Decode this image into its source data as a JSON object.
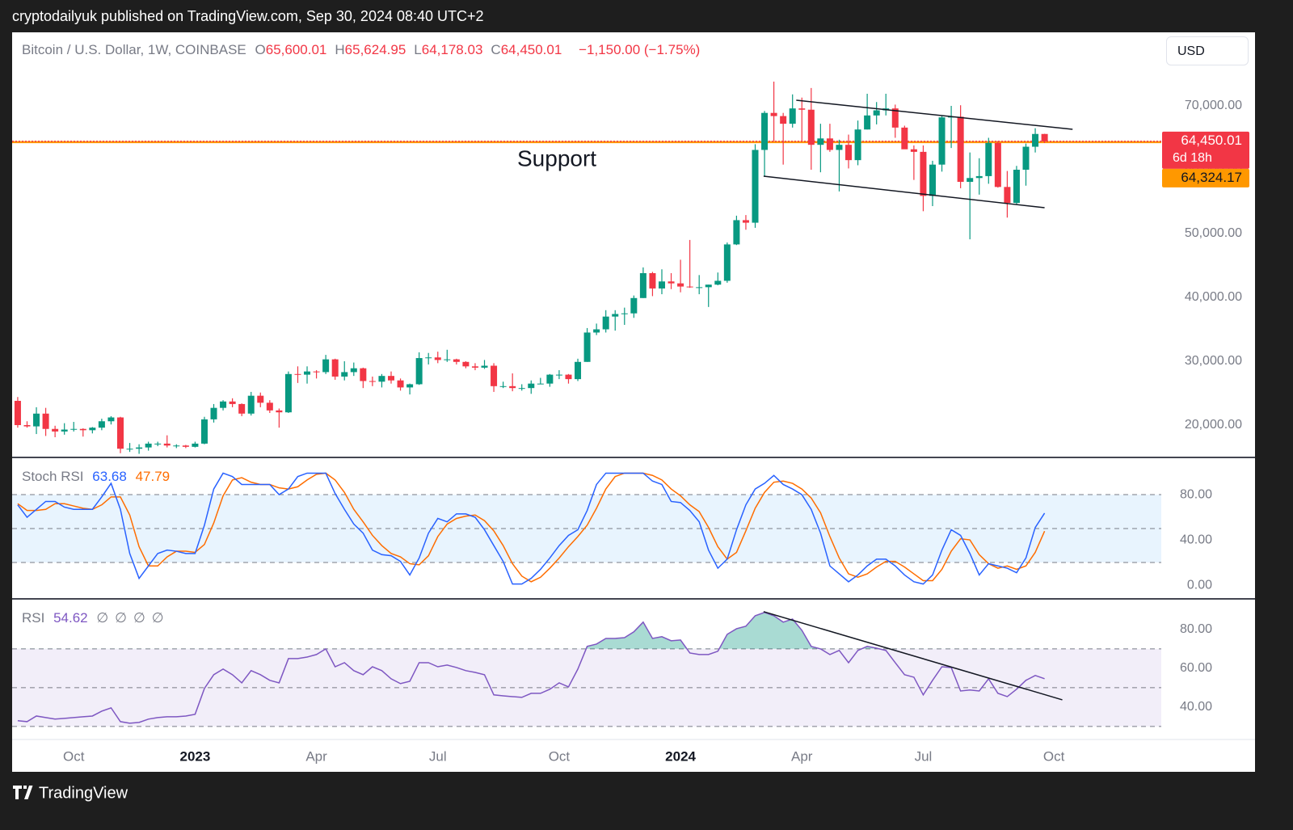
{
  "header": {
    "text": "cryptodailyuk published on TradingView.com, Sep 30, 2024 08:40 UTC+2"
  },
  "footer": {
    "brand": "TradingView"
  },
  "toolbar": {
    "currency": "USD"
  },
  "chart_data": [
    {
      "type": "candlestick",
      "legend": {
        "title": "Bitcoin / U.S. Dollar, 1W, COINBASE",
        "items": [
          {
            "key": "O",
            "value": "65,600.01"
          },
          {
            "key": "H",
            "value": "65,624.95"
          },
          {
            "key": "L",
            "value": "64,178.03"
          },
          {
            "key": "C",
            "value": "64,450.01"
          }
        ],
        "change": "−1,150.00 (−1.75%)"
      },
      "annotations": [
        "Support"
      ],
      "up_color": "#089981",
      "down_color": "#f23645",
      "categories": [
        null,
        null,
        null,
        null,
        null,
        null,
        null,
        null,
        null,
        null,
        null,
        null,
        null,
        null,
        null,
        null,
        null,
        null,
        null,
        null,
        null,
        null,
        null,
        null,
        null,
        null,
        null,
        null,
        null,
        null,
        null,
        null,
        null,
        null,
        null,
        null,
        null,
        null,
        null,
        null,
        null,
        null,
        null,
        null,
        null,
        null,
        null,
        null,
        null,
        null,
        null,
        null,
        null,
        null,
        null,
        null,
        null,
        null,
        null,
        null,
        null,
        null,
        null,
        null,
        null,
        null,
        null,
        null,
        null,
        null,
        null,
        null,
        null,
        null,
        null,
        null,
        null,
        null,
        null,
        null,
        null,
        null,
        null,
        null,
        null,
        null,
        null,
        null,
        null,
        null,
        null,
        null,
        null,
        null,
        null,
        null,
        null,
        null,
        null,
        null,
        null,
        null,
        null,
        null,
        null,
        null,
        null,
        null,
        null,
        null,
        null
      ],
      "open": [
        23800,
        20000,
        19800,
        21800,
        19400,
        19000,
        19300,
        19400,
        19200,
        19600,
        20600,
        21200,
        16300,
        16300,
        16500,
        17100,
        17100,
        16800,
        16800,
        16600,
        17100,
        20900,
        22700,
        23700,
        23300,
        21800,
        24600,
        23500,
        22300,
        22000,
        28000,
        27900,
        28400,
        28300,
        30300,
        27600,
        28300,
        28900,
        26900,
        26800,
        27700,
        27000,
        25900,
        26400,
        30500,
        30600,
        30200,
        30300,
        29900,
        29200,
        29000,
        29300,
        26100,
        26100,
        25800,
        25800,
        26500,
        26500,
        27900,
        27900,
        27200,
        29900,
        34500,
        35000,
        37000,
        37400,
        37500,
        39900,
        43800,
        41400,
        42500,
        42200,
        41700,
        41600,
        41600,
        42000,
        42600,
        48300,
        52100,
        51700,
        63100,
        68900,
        68400,
        67200,
        69600,
        69400,
        63900,
        64900,
        63100,
        63900,
        61500,
        66300,
        68500,
        69300,
        69600,
        66600,
        63200,
        62800,
        55900,
        60800,
        68200,
        68300,
        58100,
        58700,
        59000,
        64200,
        57300,
        54800,
        60000,
        63600,
        65600.01
      ],
      "high": [
        24400,
        20600,
        22800,
        22700,
        19900,
        20300,
        20500,
        19500,
        19700,
        21000,
        21400,
        21300,
        17200,
        17000,
        17400,
        17400,
        18400,
        17000,
        16900,
        17400,
        21300,
        23300,
        23900,
        24200,
        23400,
        25200,
        25100,
        23900,
        22600,
        28400,
        29200,
        29200,
        28600,
        31000,
        30400,
        30000,
        29800,
        29000,
        27600,
        28000,
        28400,
        27300,
        26500,
        31400,
        31300,
        31500,
        31800,
        30400,
        30000,
        29700,
        30200,
        29700,
        26800,
        28100,
        26400,
        27000,
        27400,
        28000,
        28600,
        28000,
        30400,
        35200,
        35900,
        38000,
        38000,
        38400,
        40300,
        44700,
        44000,
        44400,
        43800,
        45900,
        49000,
        43500,
        42000,
        43900,
        48600,
        52800,
        52900,
        64000,
        69200,
        73800,
        68900,
        71800,
        71300,
        72800,
        67200,
        67200,
        64700,
        65500,
        67700,
        71900,
        70600,
        71900,
        70200,
        66900,
        63800,
        63800,
        61400,
        68400,
        70000,
        70100,
        62700,
        61800,
        65000,
        64500,
        59800,
        60600,
        64100,
        66500,
        65624.95
      ],
      "low": [
        19600,
        19600,
        18600,
        18300,
        18100,
        18500,
        19000,
        18200,
        18700,
        19200,
        20100,
        15600,
        15800,
        15500,
        16000,
        16700,
        16500,
        16400,
        16400,
        16500,
        17000,
        20400,
        22300,
        22800,
        21400,
        21500,
        22800,
        21900,
        19600,
        21900,
        26600,
        26500,
        27300,
        28000,
        27100,
        27000,
        27700,
        25800,
        26100,
        25900,
        26500,
        25400,
        24800,
        26300,
        29500,
        29700,
        29900,
        29500,
        28900,
        28600,
        28800,
        25200,
        25800,
        25300,
        25400,
        24900,
        26400,
        26000,
        27200,
        26500,
        26900,
        29900,
        34100,
        34500,
        34800,
        35700,
        36800,
        39900,
        40200,
        40500,
        41300,
        40800,
        41500,
        40500,
        38500,
        41900,
        42300,
        48200,
        50600,
        50900,
        59000,
        64500,
        60800,
        66600,
        64500,
        60000,
        59600,
        62800,
        56600,
        60200,
        60700,
        66300,
        67100,
        68500,
        65000,
        63400,
        58400,
        53500,
        54300,
        59700,
        63400,
        57100,
        49100,
        56100,
        57800,
        57200,
        52500,
        54600,
        57500,
        62700,
        64178.03
      ],
      "close": [
        20000,
        19800,
        21800,
        19400,
        19000,
        19300,
        19400,
        19200,
        19600,
        20600,
        21200,
        16300,
        16300,
        16500,
        17100,
        17100,
        16800,
        16800,
        16600,
        17100,
        20900,
        22700,
        23700,
        23300,
        21800,
        24600,
        23500,
        22300,
        22000,
        28000,
        27900,
        28400,
        28300,
        30300,
        27600,
        28300,
        28900,
        26900,
        26800,
        27700,
        27000,
        25900,
        26400,
        30500,
        30600,
        30200,
        30300,
        29900,
        29200,
        29000,
        29300,
        26100,
        26100,
        25800,
        25800,
        26500,
        26500,
        27900,
        27900,
        27200,
        29900,
        34500,
        35000,
        37000,
        37400,
        37500,
        39900,
        43800,
        41400,
        42500,
        42200,
        41700,
        41600,
        41600,
        42000,
        42600,
        48300,
        52100,
        51700,
        63100,
        68900,
        68400,
        67200,
        69600,
        69400,
        63900,
        64900,
        63100,
        63900,
        61500,
        66300,
        68500,
        69300,
        69600,
        66600,
        63200,
        62800,
        55900,
        60800,
        68200,
        68300,
        58100,
        58700,
        59000,
        64200,
        57300,
        54800,
        60000,
        63600,
        65600,
        64450.01
      ],
      "xlim": [
        -0.6,
        122.5
      ],
      "xticks": [
        {
          "value": 6,
          "label": "Oct"
        },
        {
          "value": 19,
          "label": "2023"
        },
        {
          "value": 32,
          "label": "Apr"
        },
        {
          "value": 45,
          "label": "Jul"
        },
        {
          "value": 58,
          "label": "Oct"
        },
        {
          "value": 71,
          "label": "2024"
        },
        {
          "value": 84,
          "label": "Apr"
        },
        {
          "value": 97,
          "label": "Jul"
        },
        {
          "value": 111,
          "label": "Oct"
        }
      ],
      "ylim": [
        14937,
        81519
      ],
      "yticks": [
        {
          "value": 20000,
          "label": "20,000.00"
        },
        {
          "value": 30000,
          "label": "30,000.00"
        },
        {
          "value": 40000,
          "label": "40,000.00"
        },
        {
          "value": 50000,
          "label": "50,000.00"
        },
        {
          "value": 60000,
          "label": "60,000.00"
        },
        {
          "value": 70000,
          "label": "70,000.00"
        }
      ],
      "price_labels": [
        {
          "value": 64450.01,
          "label": "64,450.01",
          "sub": "6d 18h",
          "color": "#f23645"
        },
        {
          "value": 64324.17,
          "label": "64,324.17",
          "color": "#ff9800"
        }
      ],
      "trendlines": [
        {
          "x": [
            83.4,
            113
          ],
          "y": [
            70886,
            66329
          ]
        },
        {
          "x": [
            79.9,
            110
          ],
          "y": [
            58987,
            54051
          ]
        }
      ]
    },
    {
      "type": "line",
      "legend_title": "Stoch RSI",
      "series": [
        {
          "color": "#2962ff",
          "values": [
            71,
            60,
            67,
            74,
            74,
            69,
            67,
            67,
            67,
            78,
            90,
            67,
            28,
            6,
            17,
            28,
            31,
            30,
            28,
            28,
            53,
            85,
            99,
            96,
            89,
            89,
            89,
            89,
            80,
            85,
            96,
            99,
            99,
            99,
            81,
            67,
            54,
            46,
            31,
            27,
            26,
            21,
            9,
            24,
            46,
            59,
            56,
            63,
            63,
            60,
            49,
            35,
            21,
            1,
            1,
            6,
            14,
            24,
            35,
            44,
            49,
            66,
            89,
            99,
            99,
            99,
            99,
            99,
            92,
            89,
            74,
            73,
            66,
            56,
            31,
            15,
            23,
            49,
            71,
            85,
            90,
            97,
            89,
            85,
            80,
            67,
            46,
            17,
            10,
            3,
            9,
            17,
            23,
            23,
            17,
            9,
            3,
            1,
            9,
            31,
            49,
            44,
            28,
            9,
            19,
            17,
            15,
            11,
            24,
            51,
            63.68
          ]
        },
        {
          "color": "#ff6d00",
          "values": [
            72,
            66,
            66,
            67,
            72,
            72,
            70,
            68,
            67,
            71,
            78,
            78,
            62,
            34,
            17,
            17,
            25,
            30,
            30,
            29,
            36,
            55,
            79,
            93,
            95,
            91,
            89,
            89,
            86,
            85,
            87,
            93,
            98,
            99,
            93,
            82,
            67,
            56,
            44,
            35,
            28,
            25,
            19,
            18,
            26,
            43,
            54,
            59,
            61,
            62,
            57,
            48,
            35,
            19,
            8,
            3,
            7,
            15,
            24,
            34,
            43,
            53,
            68,
            85,
            96,
            99,
            99,
            99,
            97,
            93,
            85,
            79,
            71,
            65,
            51,
            34,
            23,
            29,
            48,
            68,
            82,
            91,
            92,
            90,
            85,
            77,
            64,
            43,
            24,
            10,
            7,
            10,
            16,
            21,
            21,
            16,
            10,
            4,
            4,
            14,
            30,
            41,
            40,
            27,
            19,
            15,
            17,
            14,
            17,
            29,
            47.79
          ]
        }
      ],
      "ylim": [
        -12.1,
        112.9
      ],
      "yticks": [
        {
          "value": 0,
          "label": "0.00"
        },
        {
          "value": 40,
          "label": "40.00"
        },
        {
          "value": 80,
          "label": "80.00"
        }
      ],
      "band": [
        20,
        80
      ],
      "band_color": "rgba(33,150,243,0.1)",
      "levels": [
        20,
        50,
        80
      ]
    },
    {
      "type": "line",
      "legend_title": "RSI",
      "legend_icons": [
        "∅",
        "∅",
        "∅",
        "∅"
      ],
      "series": [
        {
          "color": "#7e57c2",
          "values": [
            33,
            32.5,
            35.4,
            34.6,
            33.8,
            34.2,
            34.6,
            35,
            35.4,
            37.9,
            39.6,
            32.5,
            31.7,
            32.1,
            33.8,
            34.6,
            35,
            35,
            35.4,
            36.3,
            49.6,
            56.7,
            59.6,
            56.7,
            52.5,
            58.8,
            56.7,
            53.8,
            52.5,
            65,
            65,
            65.8,
            67.1,
            70,
            60.8,
            62.9,
            58.8,
            56.7,
            60.8,
            58.8,
            54.6,
            52.1,
            53.3,
            62.9,
            62.9,
            60.8,
            61.7,
            60.4,
            58.8,
            57.9,
            56.7,
            46.3,
            45.8,
            45.4,
            45,
            47.1,
            47.1,
            49.2,
            52.5,
            50.4,
            59.6,
            71.3,
            72.5,
            75.4,
            75.4,
            75.8,
            78.8,
            83.8,
            75.4,
            76.3,
            74.2,
            74.6,
            67.9,
            67.1,
            67.1,
            68.8,
            77.5,
            80.4,
            81.7,
            87.1,
            88.8,
            87.1,
            83.8,
            85.4,
            79.6,
            71.3,
            70,
            67.1,
            69.2,
            62.9,
            69.2,
            71.3,
            70.4,
            69.2,
            62.9,
            56.7,
            55.4,
            46.3,
            53.8,
            60.8,
            60.4,
            48.3,
            48.8,
            48.3,
            54.6,
            47.1,
            45.4,
            49.2,
            53.8,
            56.3,
            54.62
          ]
        }
      ],
      "ylim": [
        23.3,
        95.8
      ],
      "yticks": [
        {
          "value": 40,
          "label": "40.00"
        },
        {
          "value": 60,
          "label": "60.00"
        },
        {
          "value": 80,
          "label": "80.00"
        }
      ],
      "band": [
        30,
        70
      ],
      "band_color": "rgba(126,87,194,0.1)",
      "levels": [
        30,
        50,
        70
      ],
      "overbought_fill": "rgba(8,153,129,0.35)",
      "trendlines": [
        {
          "x": [
            79.9,
            111.9
          ],
          "y": [
            89.2,
            43.75
          ]
        }
      ]
    }
  ]
}
